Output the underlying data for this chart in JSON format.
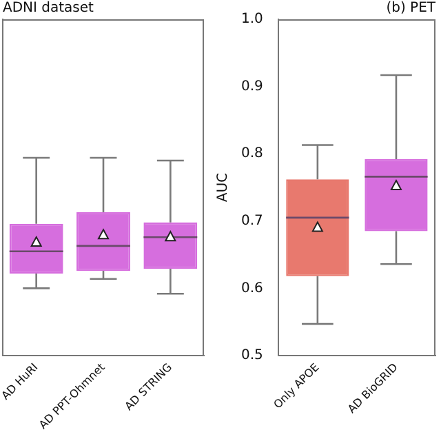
{
  "chart_data": [
    {
      "type": "box",
      "title": "ADNI dataset",
      "categories": [
        "AD HuRI",
        "AD PPT-Ohmnet",
        "AD STRING"
      ],
      "colors": [
        "#d66ede",
        "#d66ede",
        "#d66ede"
      ],
      "boxes": [
        {
          "low": 0.6,
          "q1": 0.622,
          "median": 0.655,
          "q3": 0.696,
          "high": 0.794,
          "mean": 0.668
        },
        {
          "low": 0.614,
          "q1": 0.626,
          "median": 0.663,
          "q3": 0.713,
          "high": 0.794,
          "mean": 0.679
        },
        {
          "low": 0.592,
          "q1": 0.629,
          "median": 0.676,
          "q3": 0.698,
          "high": 0.79,
          "mean": 0.676
        }
      ],
      "ylim": [
        0.5,
        1.0
      ],
      "yticks": [
        {
          "value": 0.5,
          "label": null
        },
        {
          "value": 0.6,
          "label": null
        },
        {
          "value": 0.7,
          "label": null
        },
        {
          "value": 0.8,
          "label": null
        },
        {
          "value": 0.9,
          "label": null
        },
        {
          "value": 1.0,
          "label": null
        }
      ],
      "tick_labels": "x",
      "grid": false
    },
    {
      "type": "box",
      "title": "(b) PET",
      "ylabel": "AUC",
      "categories": [
        "Only APOE",
        "AD BioGRID"
      ],
      "colors": [
        "#e8796e",
        "#d66ede"
      ],
      "boxes": [
        {
          "low": 0.547,
          "q1": 0.618,
          "median": 0.705,
          "q3": 0.762,
          "high": 0.813,
          "mean": 0.69
        },
        {
          "low": 0.636,
          "q1": 0.685,
          "median": 0.766,
          "q3": 0.792,
          "high": 0.917,
          "mean": 0.752
        }
      ],
      "ylim": [
        0.5,
        1.0
      ],
      "yticks": [
        {
          "value": 0.5,
          "label": "0.5"
        },
        {
          "value": 0.6,
          "label": "0.6"
        },
        {
          "value": 0.7,
          "label": "0.7"
        },
        {
          "value": 0.8,
          "label": "0.8"
        },
        {
          "value": 0.9,
          "label": "0.9"
        },
        {
          "value": 1.0,
          "label": "1.0"
        }
      ],
      "grid": false
    }
  ]
}
